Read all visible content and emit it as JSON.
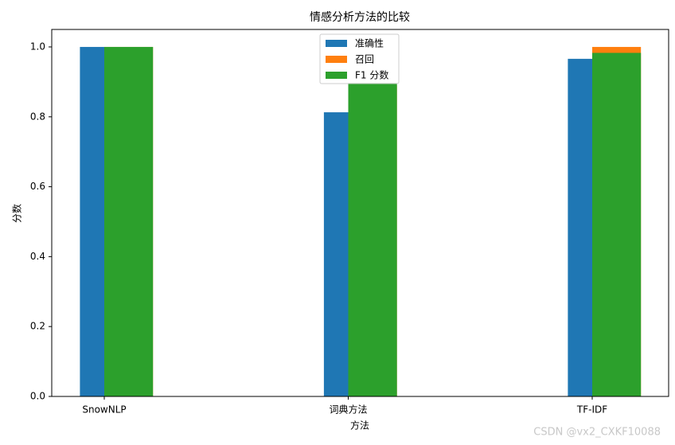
{
  "chart_data": {
    "type": "bar",
    "title": "情感分析方法的比较",
    "xlabel": "方法",
    "ylabel": "分数",
    "categories": [
      "SnowNLP",
      "词典方法",
      "TF-IDF"
    ],
    "series": [
      {
        "name": "准确性",
        "color": "#1f77b4",
        "values": [
          1.0,
          0.813,
          0.966
        ]
      },
      {
        "name": "召回",
        "color": "#ff7f0e",
        "values": [
          1.0,
          0.89,
          1.0
        ]
      },
      {
        "name": "F1 分数",
        "color": "#2ca02c",
        "values": [
          1.0,
          0.897,
          0.983
        ]
      }
    ],
    "ylim": [
      0,
      1.05
    ],
    "yticks": [
      {
        "value": 0,
        "label": "0.0"
      },
      {
        "value": 0.2,
        "label": "0.2"
      },
      {
        "value": 0.4,
        "label": "0.4"
      },
      {
        "value": 0.6,
        "label": "0.6"
      },
      {
        "value": 0.8,
        "label": "0.8"
      },
      {
        "value": 1.0,
        "label": "1.0"
      }
    ],
    "legend": "upper center",
    "watermark": "CSDN @vx2_CXKF10088"
  }
}
